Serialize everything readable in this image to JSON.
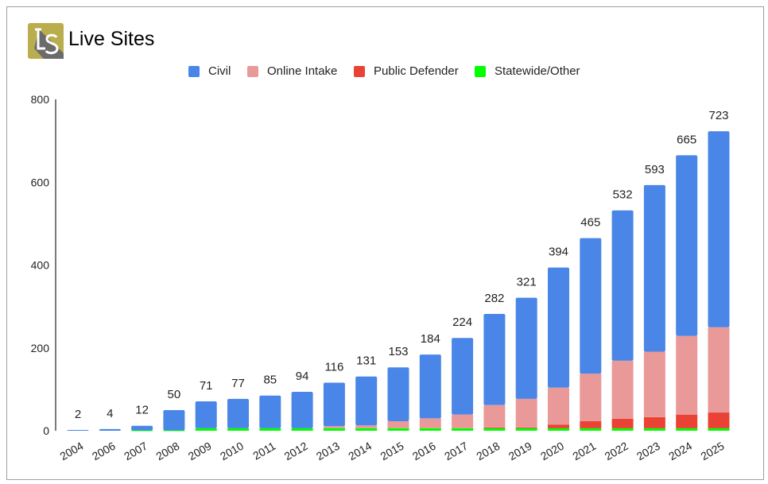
{
  "header": {
    "title": "Live Sites",
    "logo_text": "LS"
  },
  "chart_data": {
    "type": "bar",
    "stacked": true,
    "title": "Live Sites",
    "xlabel": "",
    "ylabel": "",
    "ylim": [
      0,
      800
    ],
    "yticks": [
      0,
      200,
      400,
      600,
      800
    ],
    "grid": false,
    "legend": "top",
    "categories": [
      "2004",
      "2006",
      "2007",
      "2008",
      "2009",
      "2010",
      "2011",
      "2012",
      "2013",
      "2014",
      "2015",
      "2016",
      "2017",
      "2018",
      "2019",
      "2020",
      "2021",
      "2022",
      "2023",
      "2024",
      "2025"
    ],
    "totals": [
      2,
      4,
      12,
      50,
      71,
      77,
      85,
      94,
      116,
      131,
      153,
      184,
      224,
      282,
      321,
      394,
      465,
      532,
      593,
      665,
      723
    ],
    "series": [
      {
        "name": "Statewide/Other",
        "color": "#00ff00",
        "values": [
          0,
          0,
          1,
          1,
          6,
          6,
          6,
          6,
          6,
          6,
          6,
          6,
          6,
          6,
          6,
          6,
          6,
          6,
          6,
          6,
          6
        ]
      },
      {
        "name": "Public Defender",
        "color": "#ea4335",
        "values": [
          0,
          0,
          0,
          0,
          0,
          0,
          0,
          0,
          0,
          0,
          0,
          0,
          0,
          2,
          2,
          9,
          17,
          23,
          27,
          33,
          38
        ]
      },
      {
        "name": "Online Intake",
        "color": "#ea9999",
        "values": [
          0,
          0,
          0,
          0,
          0,
          0,
          0,
          0,
          5,
          7,
          17,
          24,
          33,
          54,
          69,
          89,
          115,
          140,
          158,
          190,
          206
        ]
      },
      {
        "name": "Civil",
        "color": "#4a86e8",
        "values": [
          2,
          4,
          11,
          49,
          65,
          71,
          79,
          88,
          105,
          118,
          130,
          154,
          185,
          220,
          244,
          290,
          327,
          363,
          402,
          436,
          473
        ]
      }
    ],
    "legend_order": [
      "Civil",
      "Online Intake",
      "Public Defender",
      "Statewide/Other"
    ]
  }
}
